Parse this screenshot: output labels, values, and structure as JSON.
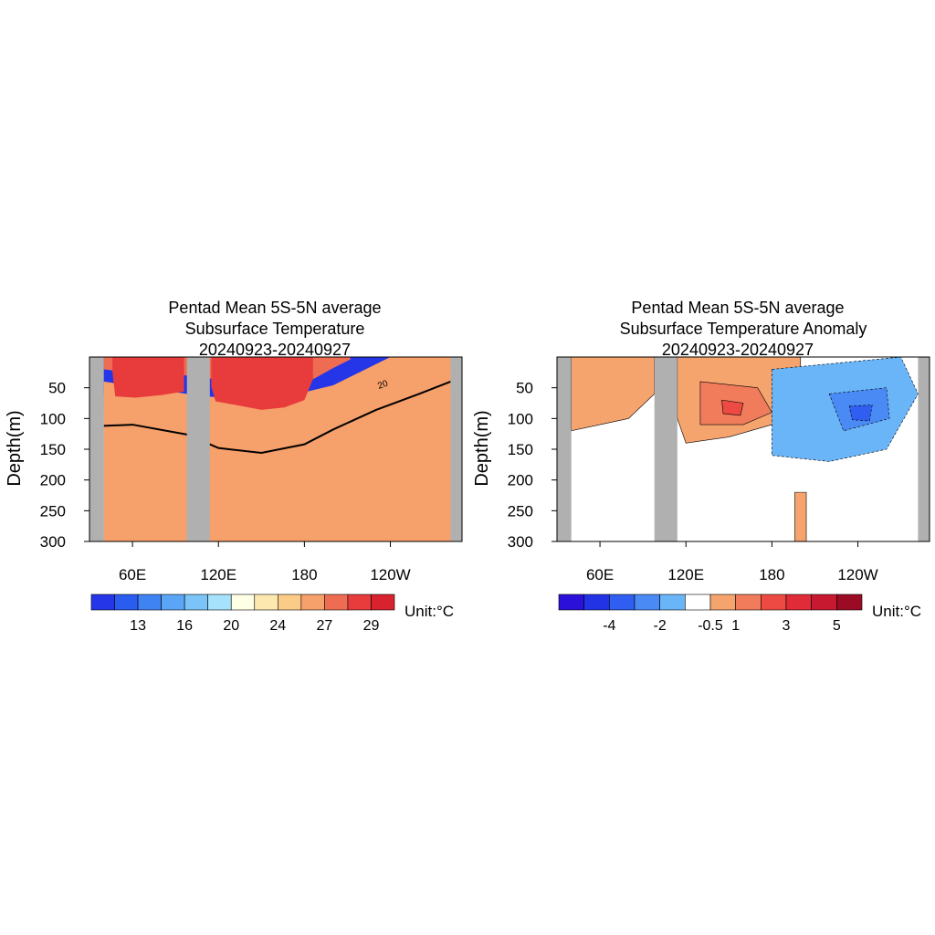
{
  "chart_data": [
    {
      "type": "heatmap",
      "title": [
        "Pentad Mean 5S-5N average",
        "Subsurface Temperature",
        "20240923-20240927"
      ],
      "xlabel": "",
      "ylabel": "Depth(m)",
      "x_ticks": [
        "60E",
        "120E",
        "180",
        "120W"
      ],
      "y_ticks": [
        "50",
        "100",
        "150",
        "200",
        "250",
        "300"
      ],
      "xlim": [
        30,
        290
      ],
      "ylim": [
        0,
        300
      ],
      "y_reversed": true,
      "colorbar": {
        "labels": [
          "13",
          "16",
          "20",
          "24",
          "27",
          "29"
        ],
        "colors": [
          "#2536e8",
          "#2a5cf0",
          "#3f82f2",
          "#5aa5f5",
          "#7cc4f7",
          "#a6e2fb",
          "#ffffe6",
          "#fde8b0",
          "#fbcb88",
          "#f6a06b",
          "#ee6d52",
          "#e83b3c",
          "#d8232f"
        ]
      },
      "unit": "Unit:°C",
      "contour_label": "20",
      "land_masks": [
        [
          30,
          40
        ],
        [
          98,
          114
        ],
        [
          282,
          290
        ]
      ],
      "fields": [
        {
          "color": "#d8232f",
          "pts": [
            [
              117,
              0
            ],
            [
              150,
              0
            ],
            [
              160,
              18
            ],
            [
              162,
              62
            ],
            [
              148,
              42
            ],
            [
              132,
              30
            ],
            [
              117,
              25
            ]
          ]
        },
        {
          "color": "#e83b3c",
          "pts": [
            [
              46,
              0
            ],
            [
              96,
              0
            ],
            [
              96,
              56
            ],
            [
              80,
              62
            ],
            [
              62,
              66
            ],
            [
              48,
              64
            ],
            [
              46,
              24
            ]
          ]
        },
        {
          "color": "#e83b3c",
          "pts": [
            [
              115,
              0
            ],
            [
              186,
              0
            ],
            [
              186,
              36
            ],
            [
              180,
              70
            ],
            [
              166,
              82
            ],
            [
              150,
              86
            ],
            [
              132,
              78
            ],
            [
              118,
              72
            ],
            [
              115,
              48
            ]
          ]
        }
      ],
      "levels": [
        {
          "color": "#ee6d52",
          "pts": [
            [
              40,
              20
            ],
            [
              60,
              26
            ],
            [
              80,
              28
            ],
            [
              98,
              30
            ],
            [
              118,
              36
            ],
            [
              140,
              40
            ],
            [
              160,
              42
            ],
            [
              180,
              44
            ],
            [
              200,
              18
            ],
            [
              212,
              4
            ]
          ]
        }
      ]
    },
    {
      "type": "heatmap",
      "title": [
        "Pentad Mean 5S-5N average",
        "Subsurface Temperature Anomaly",
        "20240923-20240927"
      ],
      "xlabel": "",
      "ylabel": "Depth(m)",
      "x_ticks": [
        "60E",
        "120E",
        "180",
        "120W"
      ],
      "y_ticks": [
        "50",
        "100",
        "150",
        "200",
        "250",
        "300"
      ],
      "xlim": [
        30,
        290
      ],
      "ylim": [
        0,
        300
      ],
      "y_reversed": true,
      "colorbar": {
        "labels": [
          "-4",
          "-2",
          "-0.5",
          "1",
          "3",
          "5"
        ],
        "colors": [
          "#2a10d8",
          "#2233e6",
          "#2f5ef0",
          "#4a8af5",
          "#6ab5f8",
          "#ffffff",
          "#f6a46e",
          "#f07c5c",
          "#ec4a42",
          "#e02b38",
          "#c71a30",
          "#9b0b24"
        ]
      },
      "unit": "Unit:°C",
      "land_masks": [
        [
          30,
          40
        ],
        [
          98,
          114
        ],
        [
          282,
          290
        ]
      ]
    }
  ]
}
